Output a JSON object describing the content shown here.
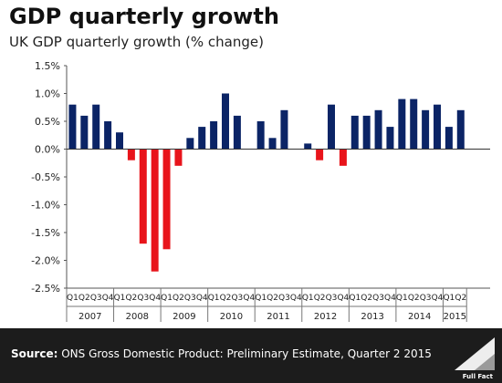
{
  "header": {
    "title": "GDP quarterly growth",
    "subtitle": "UK GDP quarterly growth (% change)"
  },
  "footer": {
    "source_label": "Source:",
    "source_text": " ONS Gross Domestic Product: Preliminary Estimate, Quarter 2 2015",
    "logo_text": "Full Fact"
  },
  "colors": {
    "positive": "#0b2466",
    "negative": "#e8141b",
    "footer_bg": "#1c1c1c"
  },
  "chart_data": {
    "type": "bar",
    "title": "GDP quarterly growth",
    "subtitle": "UK GDP quarterly growth (% change)",
    "ylim": [
      -2.5,
      1.5
    ],
    "yticks": [
      1.5,
      1.0,
      0.5,
      0.0,
      -0.5,
      -1.0,
      -1.5,
      -2.0,
      -2.5
    ],
    "ytick_labels": [
      "1.5%",
      "1.0%",
      "0.5%",
      "0.0%",
      "-0.5%",
      "-1.0%",
      "-1.5%",
      "-2.0%",
      "-2.5%"
    ],
    "grid": false,
    "years": [
      "2007",
      "2008",
      "2009",
      "2010",
      "2011",
      "2012",
      "2013",
      "2014",
      "2015"
    ],
    "quarter_labels": [
      "Q1",
      "Q2",
      "Q3",
      "Q4"
    ],
    "categories": [
      "2007 Q1",
      "2007 Q2",
      "2007 Q3",
      "2007 Q4",
      "2008 Q1",
      "2008 Q2",
      "2008 Q3",
      "2008 Q4",
      "2009 Q1",
      "2009 Q2",
      "2009 Q3",
      "2009 Q4",
      "2010 Q1",
      "2010 Q2",
      "2010 Q3",
      "2010 Q4",
      "2011 Q1",
      "2011 Q2",
      "2011 Q3",
      "2011 Q4",
      "2012 Q1",
      "2012 Q2",
      "2012 Q3",
      "2012 Q4",
      "2013 Q1",
      "2013 Q2",
      "2013 Q3",
      "2013 Q4",
      "2014 Q1",
      "2014 Q2",
      "2014 Q3",
      "2014 Q4",
      "2015 Q1",
      "2015 Q2"
    ],
    "values": [
      0.8,
      0.6,
      0.8,
      0.5,
      0.3,
      -0.2,
      -1.7,
      -2.2,
      -1.8,
      -0.3,
      0.2,
      0.4,
      0.5,
      1.0,
      0.6,
      0.0,
      0.5,
      0.2,
      0.7,
      0.0,
      0.1,
      -0.2,
      0.8,
      -0.3,
      0.6,
      0.6,
      0.7,
      0.4,
      0.9,
      0.9,
      0.7,
      0.8,
      0.4,
      0.7
    ]
  }
}
